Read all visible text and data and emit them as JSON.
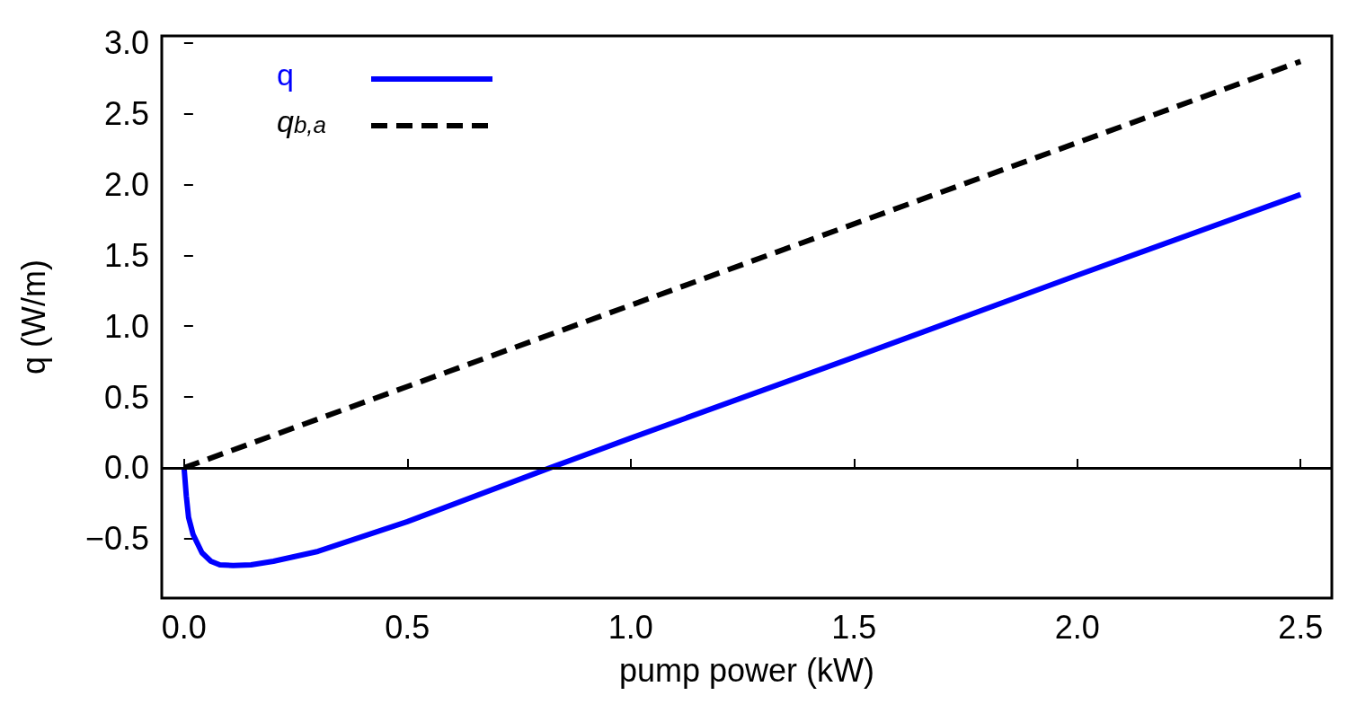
{
  "chart_data": {
    "type": "line",
    "xlabel": "pump power (kW)",
    "ylabel": "q (W/m)",
    "xlim": [
      -0.05,
      2.57
    ],
    "ylim": [
      -0.92,
      3.05
    ],
    "xticks": [
      {
        "value": 0,
        "label": "0.0"
      },
      {
        "value": 0.5,
        "label": "0.5"
      },
      {
        "value": 1,
        "label": "1.0"
      },
      {
        "value": 1.5,
        "label": "1.5"
      },
      {
        "value": 2,
        "label": "2.0"
      },
      {
        "value": 2.5,
        "label": "2.5"
      }
    ],
    "yticks": [
      {
        "value": -0.5,
        "label": "−0.5"
      },
      {
        "value": 0,
        "label": "0.0"
      },
      {
        "value": 0.5,
        "label": "0.5"
      },
      {
        "value": 1,
        "label": "1.0"
      },
      {
        "value": 1.5,
        "label": "1.5"
      },
      {
        "value": 2,
        "label": "2.0"
      },
      {
        "value": 2.5,
        "label": "2.5"
      },
      {
        "value": 3,
        "label": "3.0"
      }
    ],
    "legend": "top left",
    "marker": "none",
    "grid": false,
    "ref_lines": [
      {
        "axis": "y",
        "value": 0,
        "label": null,
        "color": "#000000"
      }
    ],
    "series": [
      {
        "name": "q",
        "color": "#0000ff",
        "line_style": "solid",
        "x": [
          0,
          0.005,
          0.01,
          0.02,
          0.04,
          0.06,
          0.08,
          0.11,
          0.15,
          0.2,
          0.3,
          0.5,
          0.82,
          1,
          1.5,
          2,
          2.5
        ],
        "values": [
          0,
          -0.2,
          -0.35,
          -0.47,
          -0.6,
          -0.66,
          -0.685,
          -0.69,
          -0.685,
          -0.66,
          -0.59,
          -0.38,
          0,
          0.21,
          0.78,
          1.36,
          1.93
        ]
      },
      {
        "name": "q$_{b,a}$",
        "color": "#000000",
        "line_style": "dashed",
        "x": [
          0,
          2.5
        ],
        "values": [
          0,
          2.87
        ]
      }
    ]
  }
}
